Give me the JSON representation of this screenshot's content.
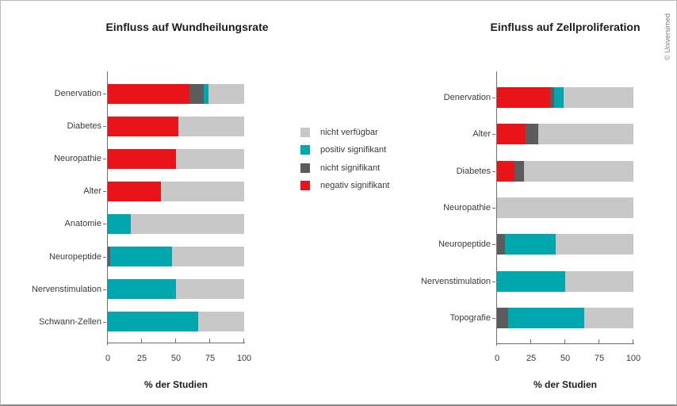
{
  "copyright": "© Universimed",
  "colors": {
    "negativ_signifikant": "#e8141a",
    "nicht_signifikant": "#5c5c5c",
    "positiv_signifikant": "#00a7ae",
    "nicht_verfuegbar": "#c8c8c8",
    "axis": "#6e6e6e"
  },
  "legend": {
    "items": [
      {
        "label": "nicht verfügbar",
        "color": "#c8c8c8"
      },
      {
        "label": "positiv signifikant",
        "color": "#00a7ae"
      },
      {
        "label": "nicht signifikant",
        "color": "#5c5c5c"
      },
      {
        "label": "negativ signifikant",
        "color": "#e8141a"
      }
    ]
  },
  "chart_data": [
    {
      "type": "bar",
      "orientation": "horizontal",
      "stacked": true,
      "grid": false,
      "title": "Einfluss auf Wundheilungsrate",
      "xlabel": "% der Studien",
      "xlim": [
        0,
        100
      ],
      "xticks": [
        0,
        25,
        50,
        75,
        100
      ],
      "categories": [
        "Denervation",
        "Diabetes",
        "Neuropathie",
        "Alter",
        "Anatomie",
        "Neuropeptide",
        "Nervenstimulation",
        "Schwann-Zellen"
      ],
      "series": [
        {
          "name": "negativ signifikant",
          "color": "#e8141a",
          "values": [
            60,
            52,
            50,
            39,
            0,
            0,
            0,
            0
          ]
        },
        {
          "name": "nicht signifikant",
          "color": "#5c5c5c",
          "values": [
            10.5,
            0,
            0,
            0,
            0,
            2,
            0,
            0
          ]
        },
        {
          "name": "positiv signifikant",
          "color": "#00a7ae",
          "values": [
            3.5,
            0,
            0,
            0,
            17,
            45,
            50,
            66
          ]
        },
        {
          "name": "nicht verfügbar",
          "color": "#c8c8c8",
          "values": [
            26,
            48,
            50,
            61,
            83,
            53,
            50,
            34
          ]
        }
      ]
    },
    {
      "type": "bar",
      "orientation": "horizontal",
      "stacked": true,
      "grid": false,
      "title": "Einfluss auf Zellproliferation",
      "xlabel": "% der Studien",
      "xlim": [
        0,
        100
      ],
      "xticks": [
        0,
        25,
        50,
        75,
        100
      ],
      "categories": [
        "Denervation",
        "Alter",
        "Diabetes",
        "Neuropathie",
        "Neuropeptide",
        "Nervenstimulation",
        "Topografie"
      ],
      "series": [
        {
          "name": "negativ signifikant",
          "color": "#e8141a",
          "values": [
            39,
            21,
            13,
            0,
            0,
            0,
            0
          ]
        },
        {
          "name": "nicht signifikant",
          "color": "#5c5c5c",
          "values": [
            3,
            9,
            7,
            0,
            6,
            0,
            8
          ]
        },
        {
          "name": "positiv signifikant",
          "color": "#00a7ae",
          "values": [
            7,
            0,
            0,
            0,
            37,
            50,
            56
          ]
        },
        {
          "name": "nicht verfügbar",
          "color": "#c8c8c8",
          "values": [
            51,
            70,
            80,
            100,
            57,
            50,
            36
          ]
        }
      ]
    }
  ]
}
